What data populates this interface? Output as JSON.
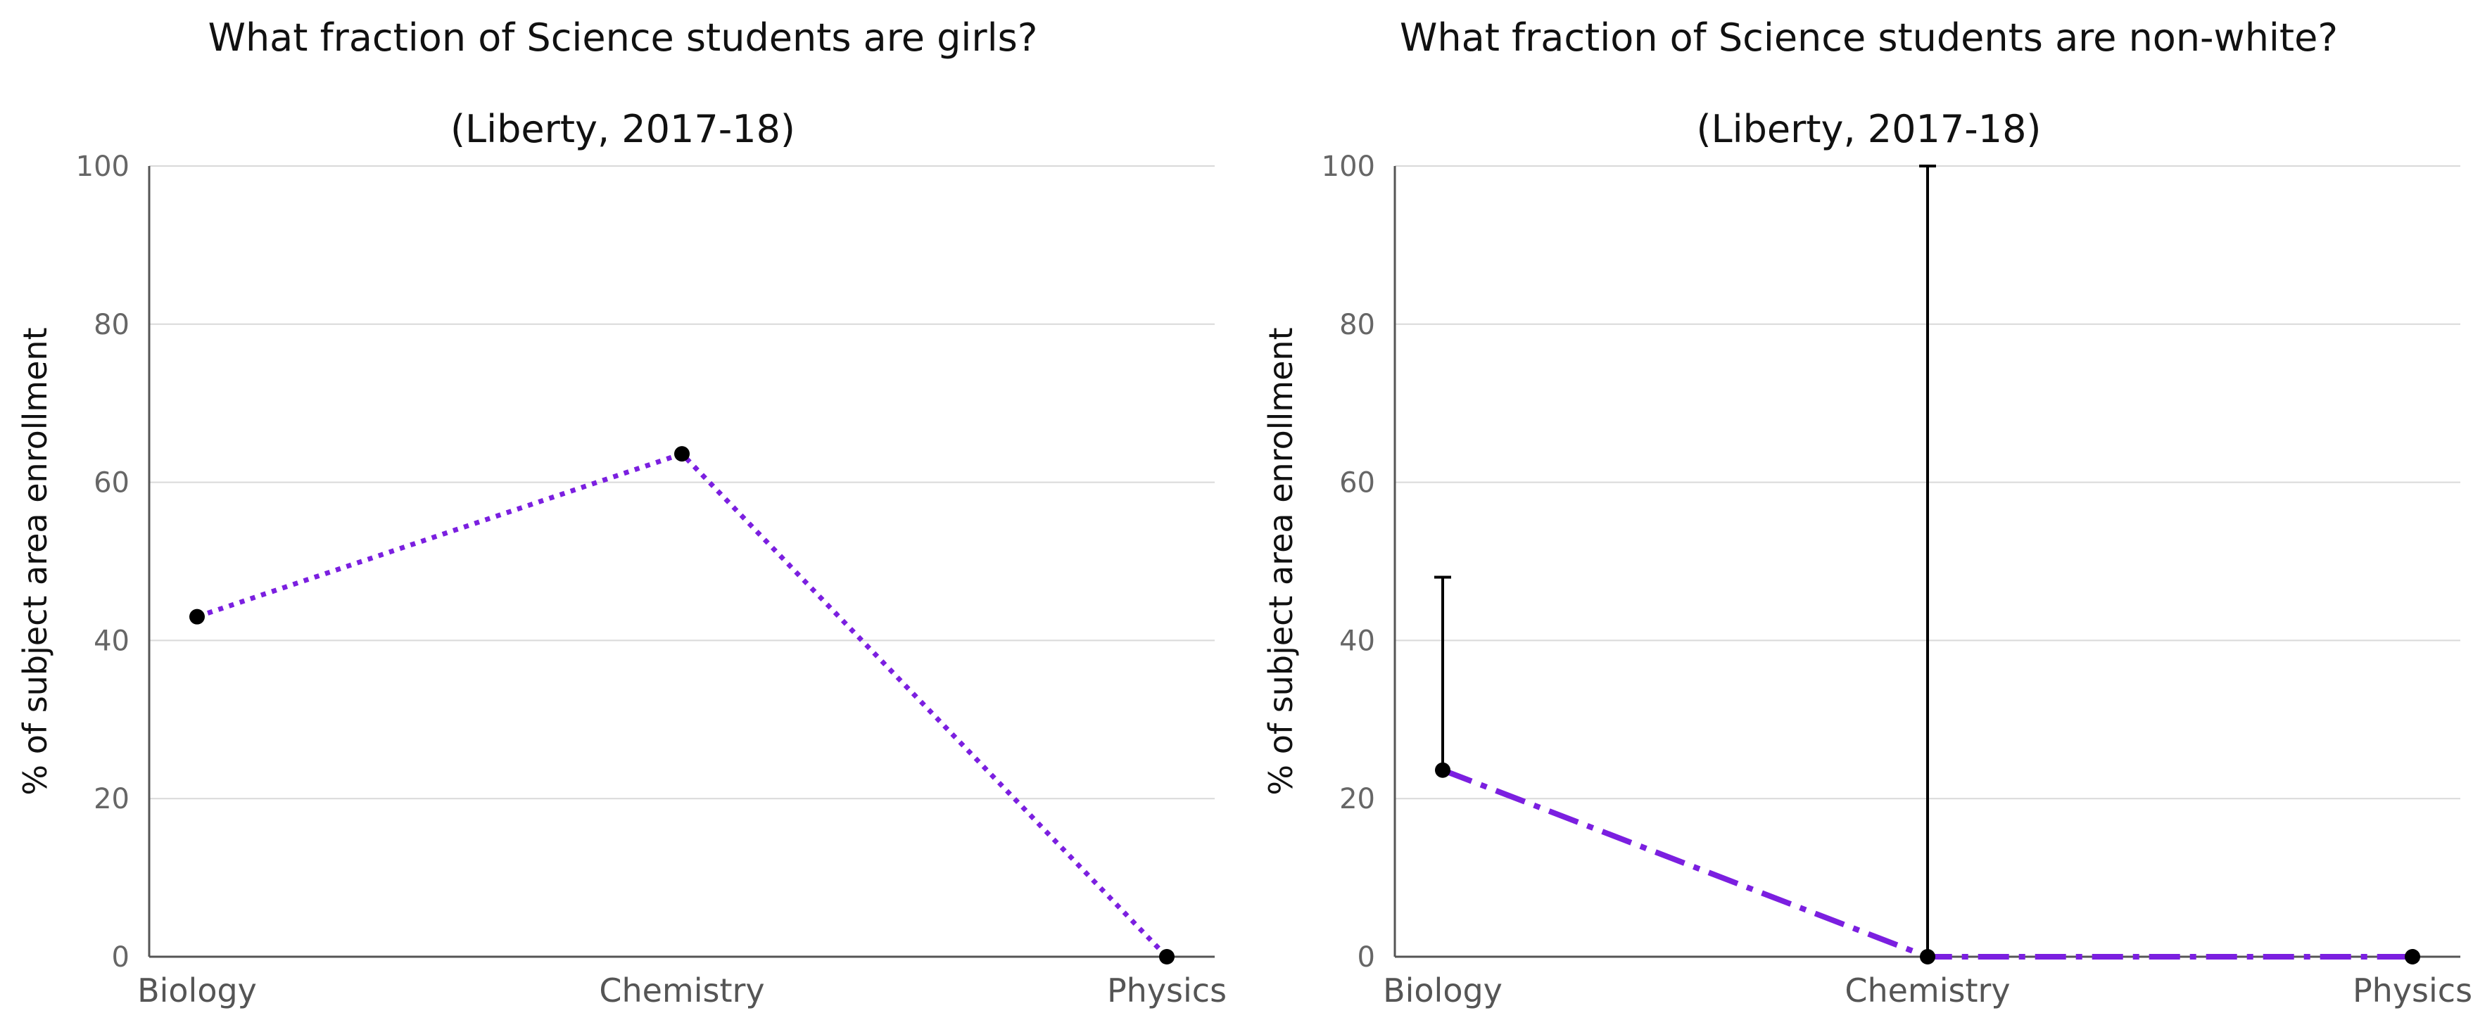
{
  "colors": {
    "series": "#7b1fe0",
    "points": "#000000",
    "error_bars": "#000000"
  },
  "chart_data": [
    {
      "type": "line",
      "title_line1": "What fraction of Science students are girls?",
      "title_line2": "(Liberty, 2017-18)",
      "ylabel": "% of subject area enrollment",
      "xlabel": "",
      "categories": [
        "Biology",
        "Chemistry",
        "Physics"
      ],
      "values": [
        43,
        63.6,
        0
      ],
      "ylim": [
        0,
        100
      ],
      "yticks": [
        "0",
        "20",
        "40",
        "60",
        "80",
        "100"
      ],
      "line_style": "dotted",
      "error_bars": [],
      "grid": true
    },
    {
      "type": "line",
      "title_line1": "What fraction of Science students are non-white?",
      "title_line2": "(Liberty, 2017-18)",
      "ylabel": "% of subject area enrollment",
      "xlabel": "",
      "categories": [
        "Biology",
        "Chemistry",
        "Physics"
      ],
      "values": [
        23.6,
        0,
        0
      ],
      "ylim": [
        0,
        100
      ],
      "yticks": [
        "0",
        "20",
        "40",
        "60",
        "80",
        "100"
      ],
      "line_style": "dash-dot",
      "error_bars": [
        {
          "category": "Biology",
          "low": 23.6,
          "high": 48
        },
        {
          "category": "Chemistry",
          "low": 0,
          "high": 100
        }
      ],
      "grid": true
    }
  ]
}
